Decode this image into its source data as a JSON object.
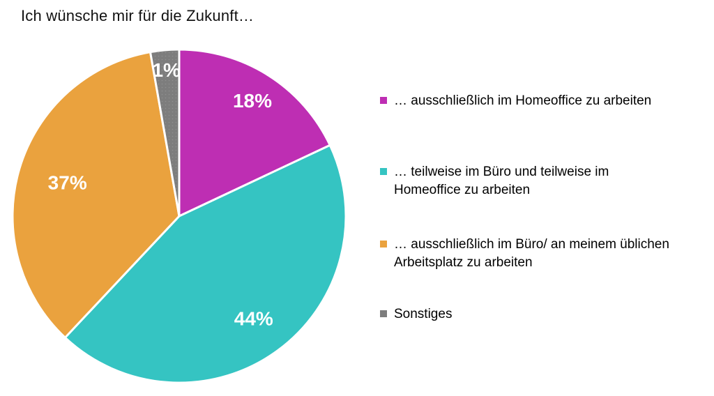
{
  "chart_data": {
    "type": "pie",
    "title": "Ich wünsche mir für die Zukunft…",
    "categories": [
      "… ausschließlich im Homeoffice zu arbeiten",
      "… teilweise im Büro und teilweise im Homeoffice zu arbeiten",
      "… ausschließlich im Büro/ an meinem üblichen Arbeitsplatz zu arbeiten",
      "Sonstiges"
    ],
    "values": [
      18,
      44,
      37,
      1
    ],
    "value_labels": [
      "18%",
      "44%",
      "37%",
      "1%"
    ],
    "colors": [
      "#BE2EB3",
      "#35C4C2",
      "#EAA23E",
      "#7D7D7D"
    ],
    "textures": [
      "solid",
      "solid",
      "solid",
      "dots"
    ],
    "texture_dot_color": "#909090",
    "slice_label_color": "#FFFFFF",
    "slice_border_color": "#FFFFFF",
    "legend_position": "right",
    "start_angle_deg": 0,
    "display_sweep_deg": [
      64.8,
      158.4,
      126.8,
      10.0
    ]
  },
  "legend": {
    "items": [
      {
        "color": "#BE2EB3",
        "lines": [
          "… ausschließlich im Homeoffice zu arbeiten"
        ]
      },
      {
        "color": "#35C4C2",
        "lines": [
          "… teilweise im Büro und teilweise im",
          "Homeoffice zu arbeiten"
        ]
      },
      {
        "color": "#EAA23E",
        "lines": [
          "… ausschließlich im Büro/ an meinem üblichen",
          "Arbeitsplatz zu arbeiten"
        ]
      },
      {
        "color": "#7D7D7D",
        "lines": [
          "Sonstiges"
        ]
      }
    ]
  }
}
